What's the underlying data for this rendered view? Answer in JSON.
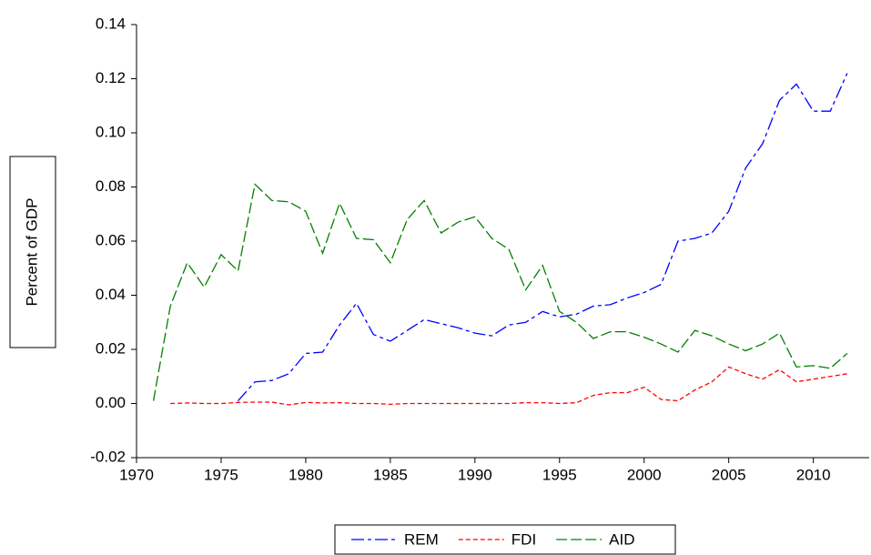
{
  "chart_data": {
    "type": "line",
    "y_label": "Percent of GDP",
    "x": [
      1971,
      1972,
      1973,
      1974,
      1975,
      1976,
      1977,
      1978,
      1979,
      1980,
      1981,
      1982,
      1983,
      1984,
      1985,
      1986,
      1987,
      1988,
      1989,
      1990,
      1991,
      1992,
      1993,
      1994,
      1995,
      1996,
      1997,
      1998,
      1999,
      2000,
      2001,
      2002,
      2003,
      2004,
      2005,
      2006,
      2007,
      2008,
      2009,
      2010,
      2011,
      2012
    ],
    "series": [
      {
        "name": "REM",
        "color": "#0000ff",
        "dash": "14,4,4,4",
        "values": [
          null,
          null,
          null,
          null,
          null,
          0.001,
          0.008,
          0.0085,
          0.011,
          0.0185,
          0.019,
          0.029,
          0.037,
          0.0255,
          0.023,
          0.027,
          0.031,
          0.0295,
          0.028,
          0.026,
          0.025,
          0.029,
          0.03,
          0.034,
          0.032,
          0.033,
          0.036,
          0.0365,
          0.039,
          0.041,
          0.044,
          0.06,
          0.061,
          0.063,
          0.071,
          0.087,
          0.096,
          0.112,
          0.118,
          0.108,
          0.108,
          0.122
        ]
      },
      {
        "name": "FDI",
        "color": "#ff0000",
        "dash": "5,3",
        "values": [
          null,
          0.0,
          0.0002,
          0.0,
          0.0,
          0.0004,
          0.0005,
          0.0005,
          -0.0005,
          0.0004,
          0.0002,
          0.0003,
          0.0,
          0.0,
          -0.0003,
          0.0,
          0.0,
          0.0,
          0.0,
          0.0,
          0.0,
          0.0,
          0.0003,
          0.0003,
          0.0,
          0.0003,
          0.003,
          0.004,
          0.004,
          0.006,
          0.0015,
          0.001,
          0.005,
          0.008,
          0.0135,
          0.011,
          0.009,
          0.0125,
          0.008,
          0.009,
          0.01,
          0.011
        ]
      },
      {
        "name": "AID",
        "color": "#008000",
        "dash": "12,4",
        "values": [
          0.001,
          0.036,
          0.052,
          0.043,
          0.055,
          0.049,
          0.081,
          0.075,
          0.0745,
          0.071,
          0.0555,
          0.074,
          0.061,
          0.0605,
          0.052,
          0.068,
          0.075,
          0.063,
          0.067,
          0.069,
          0.061,
          0.057,
          0.042,
          0.051,
          0.034,
          0.03,
          0.024,
          0.0265,
          0.0265,
          0.0245,
          0.022,
          0.019,
          0.027,
          0.025,
          0.022,
          0.0195,
          0.022,
          0.026,
          0.0135,
          0.014,
          0.013,
          0.0185
        ]
      }
    ],
    "xlim": [
      1970,
      2013.3
    ],
    "xticks": [
      1970,
      1975,
      1980,
      1985,
      1990,
      1995,
      2000,
      2005,
      2010
    ],
    "ylim": [
      -0.02,
      0.14
    ],
    "yticks": [
      0.14,
      0.12,
      {
        "value": 0.1,
        "label": "0.10"
      },
      0.08,
      0.06,
      0.04,
      0.02,
      {
        "value": 0,
        "label": "0.00"
      },
      -0.02
    ],
    "grid": false,
    "legend": "bottom"
  }
}
